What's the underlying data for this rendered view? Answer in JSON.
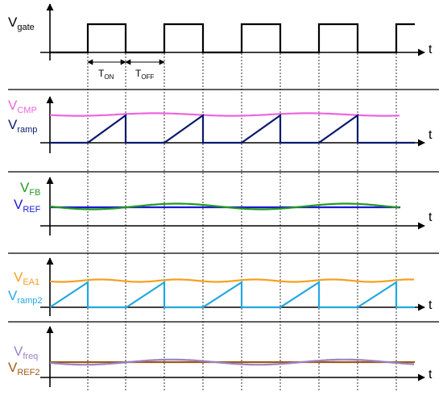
{
  "colors": {
    "axis": "#000000",
    "gate": "#000000",
    "cmp": "#ee66dd",
    "ramp": "#0a1a6e",
    "fb": "#229922",
    "ref": "#1a1ad0",
    "ea1": "#f5a020",
    "ramp2": "#22a8e0",
    "freq": "#9b82c8",
    "ref2": "#9c5a14",
    "divider": "#000000"
  },
  "panels": [
    {
      "id": "gate",
      "labels": [
        {
          "main": "V",
          "sub": "gate",
          "color": "#000000"
        }
      ],
      "axis_label": "t"
    },
    {
      "id": "ramp",
      "labels": [
        {
          "main": "V",
          "sub": "CMP",
          "color": "#ee66dd"
        },
        {
          "main": "V",
          "sub": "ramp",
          "color": "#0a1a6e"
        }
      ],
      "axis_label": "t"
    },
    {
      "id": "fb",
      "labels": [
        {
          "main": "V",
          "sub": "FB",
          "color": "#229922"
        },
        {
          "main": "V",
          "sub": "REF",
          "color": "#1a1ad0"
        }
      ],
      "axis_label": "t"
    },
    {
      "id": "ea",
      "labels": [
        {
          "main": "V",
          "sub": "EA1",
          "color": "#f5a020"
        },
        {
          "main": "V",
          "sub": "ramp2",
          "color": "#22a8e0"
        }
      ],
      "axis_label": "t"
    },
    {
      "id": "freq",
      "labels": [
        {
          "main": "V",
          "sub": "freq",
          "color": "#9b82c8"
        },
        {
          "main": "V",
          "sub": "REF2",
          "color": "#9c5a14"
        }
      ],
      "axis_label": "t"
    }
  ],
  "timing": {
    "ton": {
      "main": "T",
      "sub": "ON"
    },
    "toff": {
      "main": "T",
      "sub": "OFF"
    }
  },
  "icons": {
    "axis_arrow": "arrow-head-icon",
    "dimension_arrow": "double-arrow-icon"
  }
}
